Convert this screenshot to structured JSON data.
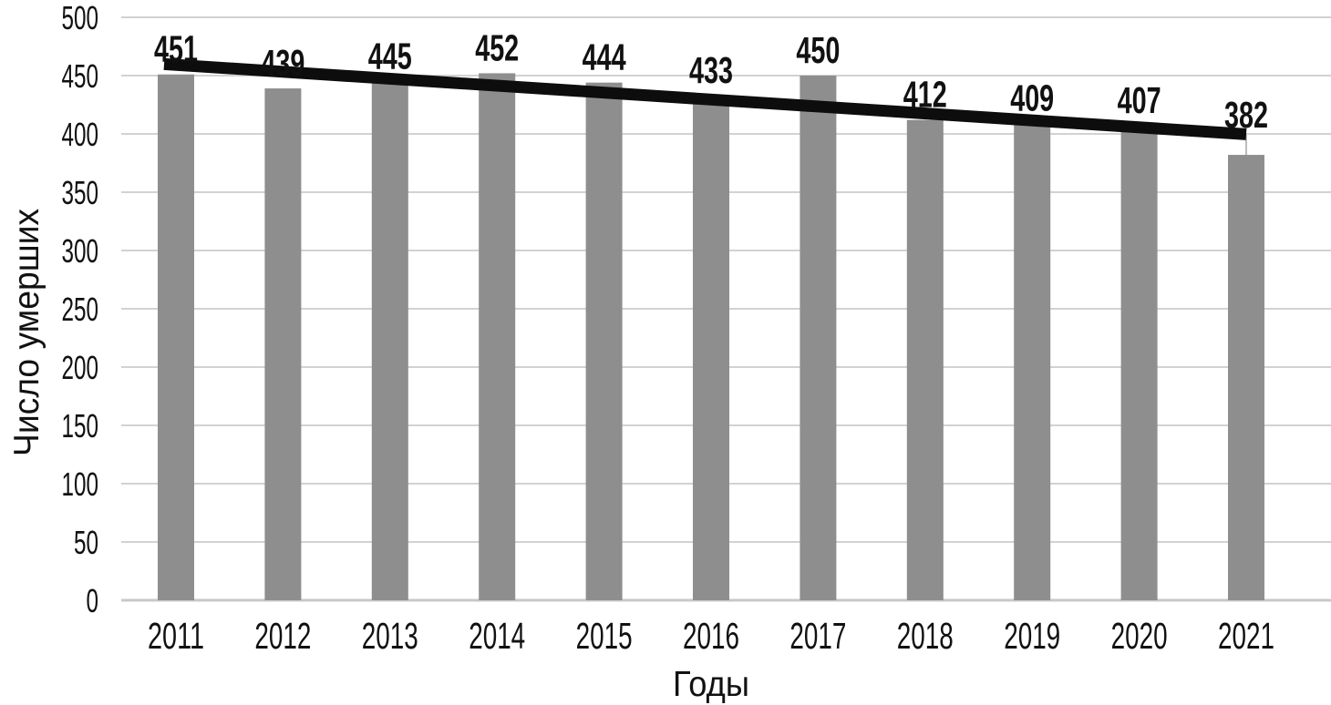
{
  "chart_data": {
    "type": "bar",
    "title": "",
    "categories": [
      "2011",
      "2012",
      "2013",
      "2014",
      "2015",
      "2016",
      "2017",
      "2018",
      "2019",
      "2020",
      "2021"
    ],
    "values": [
      451,
      439,
      445,
      452,
      444,
      433,
      450,
      412,
      409,
      407,
      382
    ],
    "data_labels": [
      "451",
      "439",
      "445",
      "452",
      "444",
      "433",
      "450",
      "412",
      "409",
      "407",
      "382"
    ],
    "xlabel": "Годы",
    "ylabel": "Число умерших",
    "ylim": [
      0,
      500
    ],
    "yticks": [
      500,
      450,
      400,
      350,
      300,
      250,
      200,
      150,
      100,
      50,
      0
    ],
    "grid": "horizontal",
    "legend": "none",
    "trendline": {
      "type": "linear",
      "fit_values": "computed from series by least squares, approx 459 at 2011 down to 400 at 2021"
    },
    "colors": {
      "bar": "#8e8e8e",
      "gridline": "#d2d2d2",
      "zero_line": "#c8c8c8",
      "trendline": "#0d0d0d",
      "text": "#111111",
      "leader_line": "#a6a6a6",
      "background": "#ffffff"
    }
  }
}
